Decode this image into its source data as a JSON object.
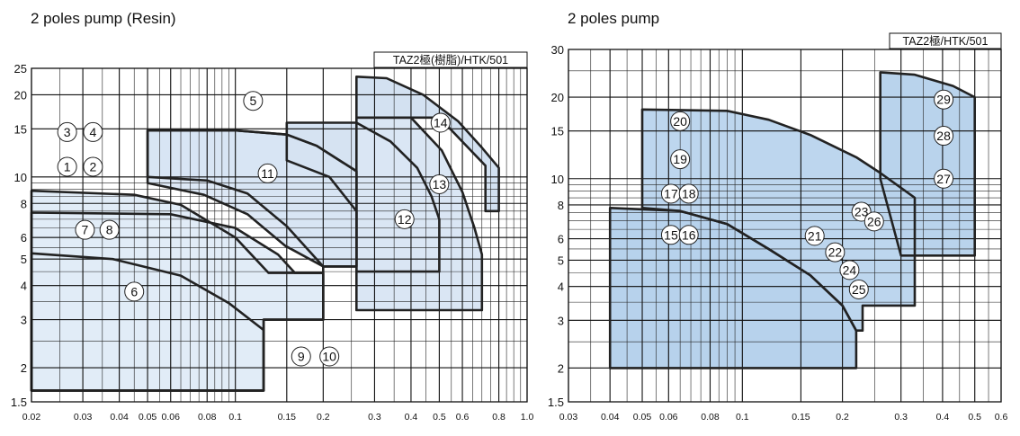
{
  "chart_data": [
    {
      "type": "area",
      "title": "2 poles pump (Resin)",
      "model_label": "TAZ2極(樹脂)/HTK/501",
      "xscale": "log",
      "yscale": "log",
      "xlim": [
        0.02,
        1.0
      ],
      "ylim": [
        1.5,
        25
      ],
      "xticks": [
        0.02,
        0.03,
        0.04,
        0.05,
        0.06,
        0.08,
        0.1,
        0.15,
        0.2,
        0.3,
        0.4,
        0.5,
        0.6,
        0.8,
        1.0
      ],
      "xtick_labels": [
        "0.02",
        "0.03",
        "0.04",
        "0.05",
        "0.06",
        "0.08",
        "0.1",
        "0.15",
        "0.2",
        "0.3",
        "0.4",
        "0.5",
        "0.6",
        "0.8",
        "1.0"
      ],
      "yticks": [
        1.5,
        2,
        3,
        4,
        5,
        6,
        8,
        10,
        15,
        20,
        25
      ],
      "ytick_labels": [
        "1.5",
        "2",
        "3",
        "4",
        "5",
        "6",
        "8",
        "10",
        "15",
        "20",
        "25"
      ],
      "grid": true,
      "regions": [
        {
          "name": "6",
          "polygon": [
            [
              0.02,
              1.65
            ],
            [
              0.125,
              1.65
            ],
            [
              0.125,
              2.75
            ],
            [
              0.095,
              3.45
            ],
            [
              0.065,
              4.35
            ],
            [
              0.038,
              5.0
            ],
            [
              0.02,
              5.25
            ]
          ]
        },
        {
          "name": "7,8",
          "polygon": [
            [
              0.02,
              1.65
            ],
            [
              0.125,
              1.65
            ],
            [
              0.125,
              3.0
            ],
            [
              0.2,
              3.0
            ],
            [
              0.2,
              4.45
            ],
            [
              0.16,
              4.45
            ],
            [
              0.14,
              5.2
            ],
            [
              0.1,
              6.5
            ],
            [
              0.06,
              7.3
            ],
            [
              0.02,
              7.4
            ]
          ]
        },
        {
          "name": "1,2",
          "polygon": [
            [
              0.02,
              1.65
            ],
            [
              0.125,
              1.65
            ],
            [
              0.125,
              3.0
            ],
            [
              0.2,
              3.0
            ],
            [
              0.2,
              4.45
            ],
            [
              0.13,
              4.45
            ],
            [
              0.1,
              6.0
            ],
            [
              0.065,
              7.9
            ],
            [
              0.045,
              8.6
            ],
            [
              0.02,
              8.9
            ]
          ]
        },
        {
          "name": "3,4",
          "polygon": [
            [
              0.2,
              3.0
            ],
            [
              0.2,
              4.7
            ],
            [
              0.148,
              5.6
            ],
            [
              0.11,
              7.3
            ],
            [
              0.078,
              8.6
            ],
            [
              0.05,
              9.5
            ],
            [
              0.05,
              10.0
            ],
            [
              0.05,
              14.8
            ],
            [
              0.1,
              14.8
            ],
            [
              0.15,
              14.3
            ],
            [
              0.19,
              13.0
            ],
            [
              0.26,
              10.5
            ],
            [
              0.26,
              4.7
            ],
            [
              0.2,
              4.7
            ]
          ]
        },
        {
          "name": "5",
          "polygon": [
            [
              0.05,
              14.8
            ],
            [
              0.1,
              14.8
            ],
            [
              0.15,
              14.3
            ],
            [
              0.19,
              13.0
            ],
            [
              0.26,
              10.5
            ],
            [
              0.26,
              4.7
            ],
            [
              0.2,
              4.7
            ],
            [
              0.15,
              6.6
            ],
            [
              0.11,
              8.7
            ],
            [
              0.08,
              9.7
            ],
            [
              0.05,
              10.0
            ]
          ]
        },
        {
          "name": "12",
          "polygon": [
            [
              0.15,
              15.8
            ],
            [
              0.26,
              15.8
            ],
            [
              0.34,
              13.5
            ],
            [
              0.42,
              10.8
            ],
            [
              0.47,
              8.5
            ],
            [
              0.5,
              7.0
            ],
            [
              0.5,
              4.5
            ],
            [
              0.26,
              4.5
            ],
            [
              0.26,
              7.5
            ],
            [
              0.21,
              10.0
            ],
            [
              0.15,
              11.5
            ]
          ]
        },
        {
          "name": "13",
          "polygon": [
            [
              0.26,
              16.5
            ],
            [
              0.4,
              16.5
            ],
            [
              0.51,
              12.5
            ],
            [
              0.6,
              8.8
            ],
            [
              0.66,
              6.5
            ],
            [
              0.7,
              5.2
            ],
            [
              0.7,
              3.25
            ],
            [
              0.26,
              3.25
            ]
          ]
        },
        {
          "name": "14",
          "polygon": [
            [
              0.26,
              23.3
            ],
            [
              0.33,
              23.0
            ],
            [
              0.44,
              20.0
            ],
            [
              0.58,
              16.0
            ],
            [
              0.7,
              12.8
            ],
            [
              0.8,
              10.8
            ],
            [
              0.8,
              7.5
            ],
            [
              0.72,
              7.5
            ],
            [
              0.72,
              11.0
            ],
            [
              0.5,
              16.5
            ],
            [
              0.26,
              16.5
            ]
          ]
        }
      ],
      "labels": [
        {
          "text": "1",
          "x": 0.0265,
          "y": 10.9
        },
        {
          "text": "2",
          "x": 0.0325,
          "y": 10.9
        },
        {
          "text": "3",
          "x": 0.0265,
          "y": 14.6
        },
        {
          "text": "4",
          "x": 0.0325,
          "y": 14.6
        },
        {
          "text": "5",
          "x": 0.115,
          "y": 19.0
        },
        {
          "text": "6",
          "x": 0.045,
          "y": 3.8
        },
        {
          "text": "7",
          "x": 0.0305,
          "y": 6.4
        },
        {
          "text": "8",
          "x": 0.037,
          "y": 6.4
        },
        {
          "text": "9",
          "x": 0.168,
          "y": 2.2
        },
        {
          "text": "10",
          "x": 0.21,
          "y": 2.2
        },
        {
          "text": "11",
          "x": 0.129,
          "y": 10.3
        },
        {
          "text": "12",
          "x": 0.38,
          "y": 7.0
        },
        {
          "text": "13",
          "x": 0.5,
          "y": 9.4
        },
        {
          "text": "14",
          "x": 0.505,
          "y": 15.8
        }
      ]
    },
    {
      "type": "area",
      "title": "2 poles pump",
      "model_label": "TAZ2極/HTK/501",
      "xscale": "log",
      "yscale": "log",
      "xlim": [
        0.03,
        0.6
      ],
      "ylim": [
        1.5,
        30
      ],
      "xticks": [
        0.03,
        0.04,
        0.05,
        0.06,
        0.08,
        0.1,
        0.15,
        0.2,
        0.3,
        0.4,
        0.5,
        0.6
      ],
      "xtick_labels": [
        "0.03",
        "0.04",
        "0.05",
        "0.06",
        "0.08",
        "0.1",
        "0.15",
        "0.2",
        "0.3",
        "0.4",
        "0.5",
        "0.6"
      ],
      "yticks": [
        1.5,
        2,
        3,
        4,
        5,
        6,
        8,
        10,
        15,
        20,
        30
      ],
      "ytick_labels": [
        "1.5",
        "2",
        "3",
        "4",
        "5",
        "6",
        "8",
        "10",
        "15",
        "20",
        "30"
      ],
      "grid": true,
      "regions": [
        {
          "name": "15,16",
          "polygon": [
            [
              0.04,
              2.0
            ],
            [
              0.22,
              2.0
            ],
            [
              0.22,
              2.75
            ],
            [
              0.2,
              3.4
            ],
            [
              0.16,
              4.4
            ],
            [
              0.12,
              5.5
            ],
            [
              0.09,
              6.8
            ],
            [
              0.065,
              7.6
            ],
            [
              0.04,
              7.8
            ]
          ]
        },
        {
          "name": "20",
          "polygon": [
            [
              0.05,
              18.0
            ],
            [
              0.09,
              17.8
            ],
            [
              0.12,
              16.5
            ],
            [
              0.16,
              14.5
            ],
            [
              0.22,
              12.0
            ],
            [
              0.26,
              10.5
            ],
            [
              0.33,
              8.5
            ],
            [
              0.33,
              3.4
            ],
            [
              0.23,
              3.4
            ],
            [
              0.23,
              2.75
            ],
            [
              0.22,
              2.75
            ],
            [
              0.2,
              3.4
            ],
            [
              0.16,
              4.4
            ],
            [
              0.12,
              5.5
            ],
            [
              0.09,
              6.8
            ],
            [
              0.065,
              7.6
            ],
            [
              0.05,
              7.8
            ]
          ]
        },
        {
          "name": "29",
          "polygon": [
            [
              0.26,
              24.7
            ],
            [
              0.33,
              24.2
            ],
            [
              0.43,
              22.0
            ],
            [
              0.5,
              20.0
            ],
            [
              0.5,
              5.2
            ],
            [
              0.3,
              5.2
            ],
            [
              0.26,
              10.0
            ]
          ]
        }
      ],
      "labels": [
        {
          "text": "15",
          "x": 0.061,
          "y": 6.2
        },
        {
          "text": "16",
          "x": 0.069,
          "y": 6.2
        },
        {
          "text": "17",
          "x": 0.061,
          "y": 8.8
        },
        {
          "text": "18",
          "x": 0.069,
          "y": 8.8
        },
        {
          "text": "19",
          "x": 0.065,
          "y": 11.8
        },
        {
          "text": "20",
          "x": 0.065,
          "y": 16.3
        },
        {
          "text": "21",
          "x": 0.165,
          "y": 6.15
        },
        {
          "text": "22",
          "x": 0.19,
          "y": 5.35
        },
        {
          "text": "23",
          "x": 0.228,
          "y": 7.55
        },
        {
          "text": "24",
          "x": 0.21,
          "y": 4.6
        },
        {
          "text": "25",
          "x": 0.224,
          "y": 3.9
        },
        {
          "text": "26",
          "x": 0.249,
          "y": 6.95
        },
        {
          "text": "27",
          "x": 0.403,
          "y": 10.0
        },
        {
          "text": "28",
          "x": 0.403,
          "y": 14.4
        },
        {
          "text": "29",
          "x": 0.403,
          "y": 19.6
        }
      ]
    }
  ]
}
